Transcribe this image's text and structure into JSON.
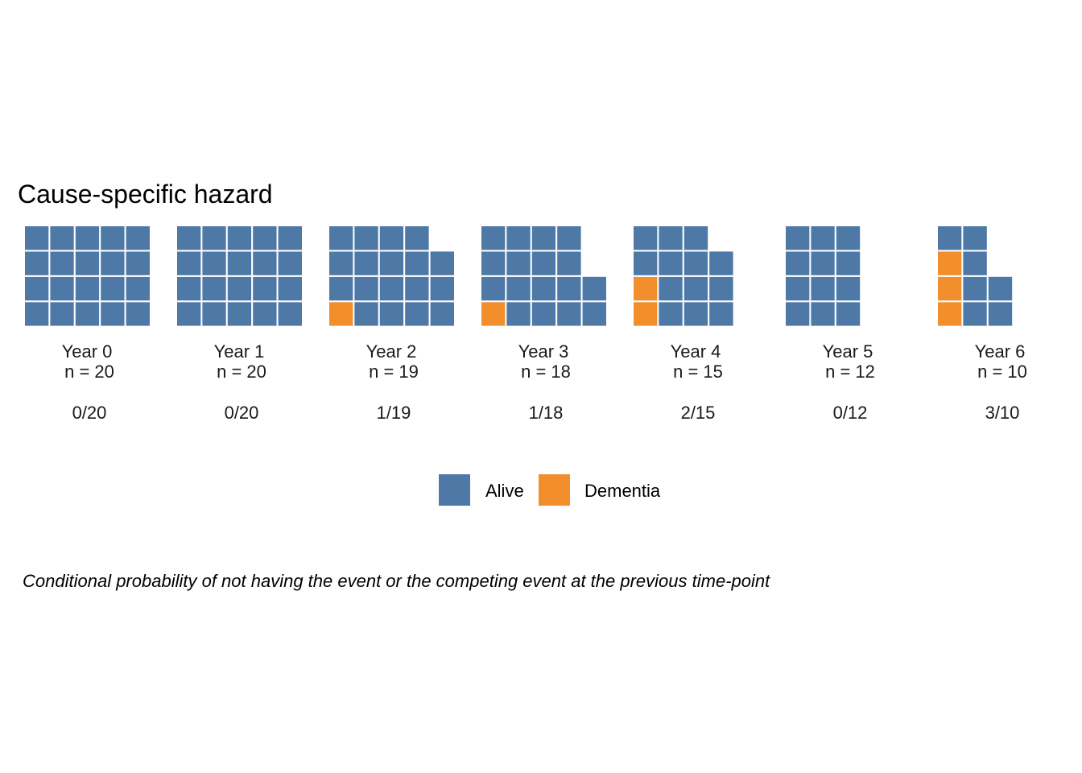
{
  "colors": {
    "Alive": "#4e79a7",
    "Dementia": "#f28e2b"
  },
  "chart_data": {
    "type": "waffle",
    "title": "Cause-specific hazard",
    "caption": "Conditional probability of not having the event or the competing event at the previous time-point",
    "legend": {
      "position": "bottom",
      "entries": [
        "Alive",
        "Dementia"
      ]
    },
    "panels": [
      {
        "label": "Year 0",
        "n_label": "n = 20",
        "n": 20,
        "events": 0,
        "fraction_label": "0/20"
      },
      {
        "label": "Year 1",
        "n_label": "n = 20",
        "n": 20,
        "events": 0,
        "fraction_label": "0/20"
      },
      {
        "label": "Year 2",
        "n_label": "n = 19",
        "n": 19,
        "events": 1,
        "fraction_label": "1/19"
      },
      {
        "label": "Year 3",
        "n_label": "n = 18",
        "n": 18,
        "events": 1,
        "fraction_label": "1/18"
      },
      {
        "label": "Year 4",
        "n_label": "n = 15",
        "n": 15,
        "events": 2,
        "fraction_label": "2/15"
      },
      {
        "label": "Year 5",
        "n_label": "n = 12",
        "n": 12,
        "events": 0,
        "fraction_label": "0/12"
      },
      {
        "label": "Year 6",
        "n_label": "n = 10",
        "n": 10,
        "events": 3,
        "fraction_label": "3/10"
      }
    ]
  }
}
